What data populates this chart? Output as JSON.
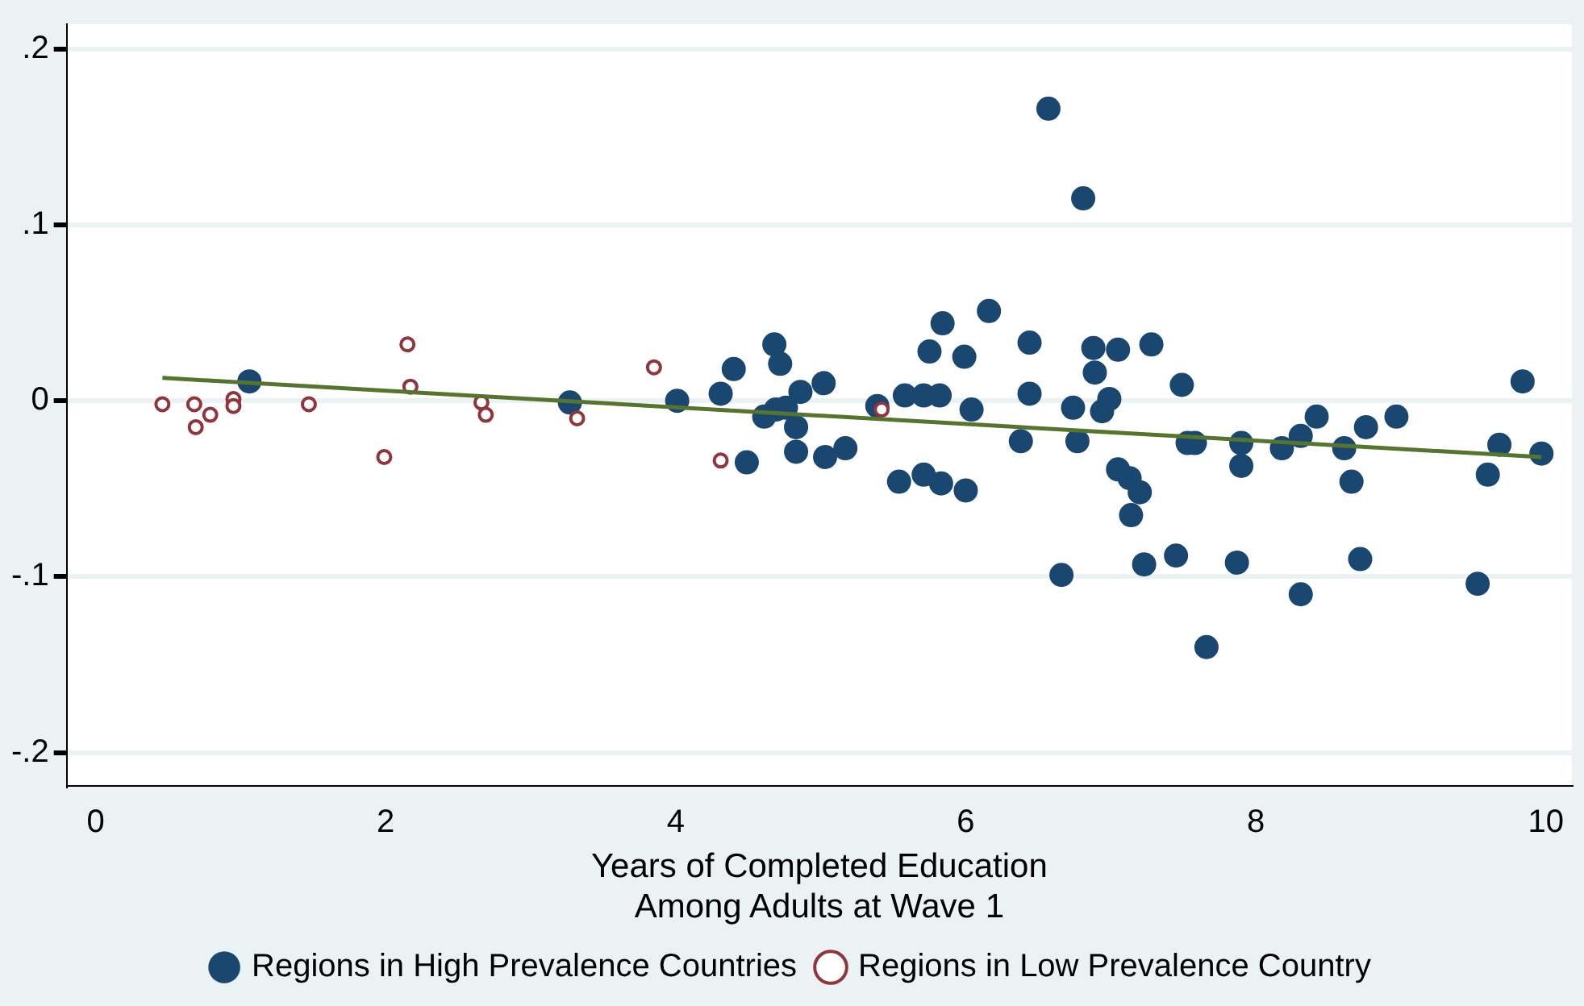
{
  "chart_data": {
    "type": "scatter",
    "xlabel": "Years of Completed Education\nAmong Adults at Wave 1",
    "xlim": [
      -0.2,
      10.18
    ],
    "xticks": [
      0,
      2,
      4,
      6,
      8,
      10
    ],
    "ylim": [
      -0.219,
      0.214
    ],
    "yticks": [
      {
        "value": -0.2,
        "label": "-.2"
      },
      {
        "value": -0.1,
        "label": "-.1"
      },
      0,
      {
        "value": 0.1,
        "label": ".1"
      },
      {
        "value": 0.2,
        "label": ".2"
      }
    ],
    "grid": "y",
    "legend": "bottom",
    "marker": "circle",
    "series": [
      {
        "name": "Regions in High Prevalence Countries",
        "color": "#1a476f",
        "x": [
          1.06,
          3.27,
          4.01,
          4.31,
          4.4,
          4.49,
          4.68,
          4.72,
          4.61,
          4.69,
          4.76,
          4.83,
          4.86,
          4.83,
          5.02,
          5.03,
          5.17,
          5.39,
          5.54,
          5.58,
          5.71,
          5.71,
          5.82,
          5.83,
          5.75,
          5.84,
          5.99,
          6.0,
          6.04,
          6.16,
          6.57,
          6.81,
          6.44,
          6.44,
          6.38,
          6.66,
          6.74,
          6.77,
          6.88,
          6.89,
          7.05,
          6.99,
          6.94,
          7.05,
          7.13,
          7.2,
          7.14,
          7.23,
          7.28,
          7.45,
          7.49,
          7.53,
          7.58,
          7.66,
          7.87,
          7.9,
          7.9,
          8.18,
          8.31,
          8.31,
          8.42,
          8.61,
          8.66,
          8.72,
          8.76,
          8.97,
          9.53,
          9.6,
          9.68,
          9.84,
          9.97
        ],
        "values": [
          0.011,
          -0.001,
          0,
          0.004,
          0.018,
          -0.035,
          0.032,
          0.021,
          -0.009,
          -0.005,
          -0.004,
          -0.015,
          0.005,
          -0.029,
          0.01,
          -0.032,
          -0.027,
          -0.003,
          -0.046,
          0.003,
          0.003,
          -0.042,
          0.003,
          -0.047,
          0.028,
          0.044,
          0.025,
          -0.051,
          -0.005,
          0.051,
          0.166,
          0.115,
          0.033,
          0.004,
          -0.023,
          -0.099,
          -0.004,
          -0.023,
          0.03,
          0.016,
          0.029,
          0.001,
          -0.006,
          -0.039,
          -0.044,
          -0.052,
          -0.065,
          -0.093,
          0.032,
          -0.088,
          0.009,
          -0.024,
          -0.024,
          -0.14,
          -0.092,
          -0.024,
          -0.037,
          -0.027,
          -0.11,
          -0.02,
          -0.009,
          -0.027,
          -0.046,
          -0.09,
          -0.015,
          -0.009,
          -0.104,
          -0.042,
          -0.025,
          0.011,
          -0.03
        ]
      },
      {
        "name": "Regions in Low Prevalence Country",
        "color": "#90353b",
        "x": [
          0.46,
          0.68,
          0.69,
          0.79,
          0.95,
          0.95,
          1.47,
          1.99,
          2.15,
          2.17,
          2.66,
          2.69,
          3.32,
          3.85,
          4.31,
          5.42
        ],
        "values": [
          -0.002,
          -0.002,
          -0.015,
          -0.008,
          0.001,
          -0.003,
          -0.002,
          -0.032,
          0.032,
          0.008,
          -0.001,
          -0.008,
          -0.01,
          0.019,
          -0.034,
          -0.005
        ]
      },
      {
        "type": "line",
        "marker": "none",
        "color": "#55752f",
        "x": [
          0.46,
          9.97
        ],
        "values": [
          0.013,
          -0.032
        ]
      }
    ]
  }
}
